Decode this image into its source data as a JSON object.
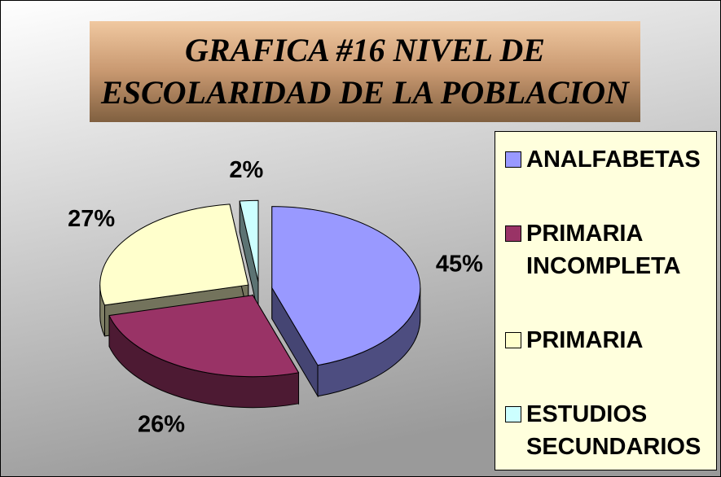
{
  "chart_data": {
    "type": "pie",
    "title": "GRAFICA #16 NIVEL DE ESCOLARIDAD DE LA POBLACION",
    "categories": [
      "ANALFABETAS",
      "PRIMARIA INCOMPLETA",
      "PRIMARIA",
      "ESTUDIOS SECUNDARIOS"
    ],
    "values": [
      45,
      26,
      27,
      2
    ],
    "value_labels": [
      "45%",
      "26%",
      "27%",
      "2%"
    ],
    "colors": [
      "#9999ff",
      "#993366",
      "#ffffcc",
      "#ccffff"
    ],
    "legend": "right"
  }
}
